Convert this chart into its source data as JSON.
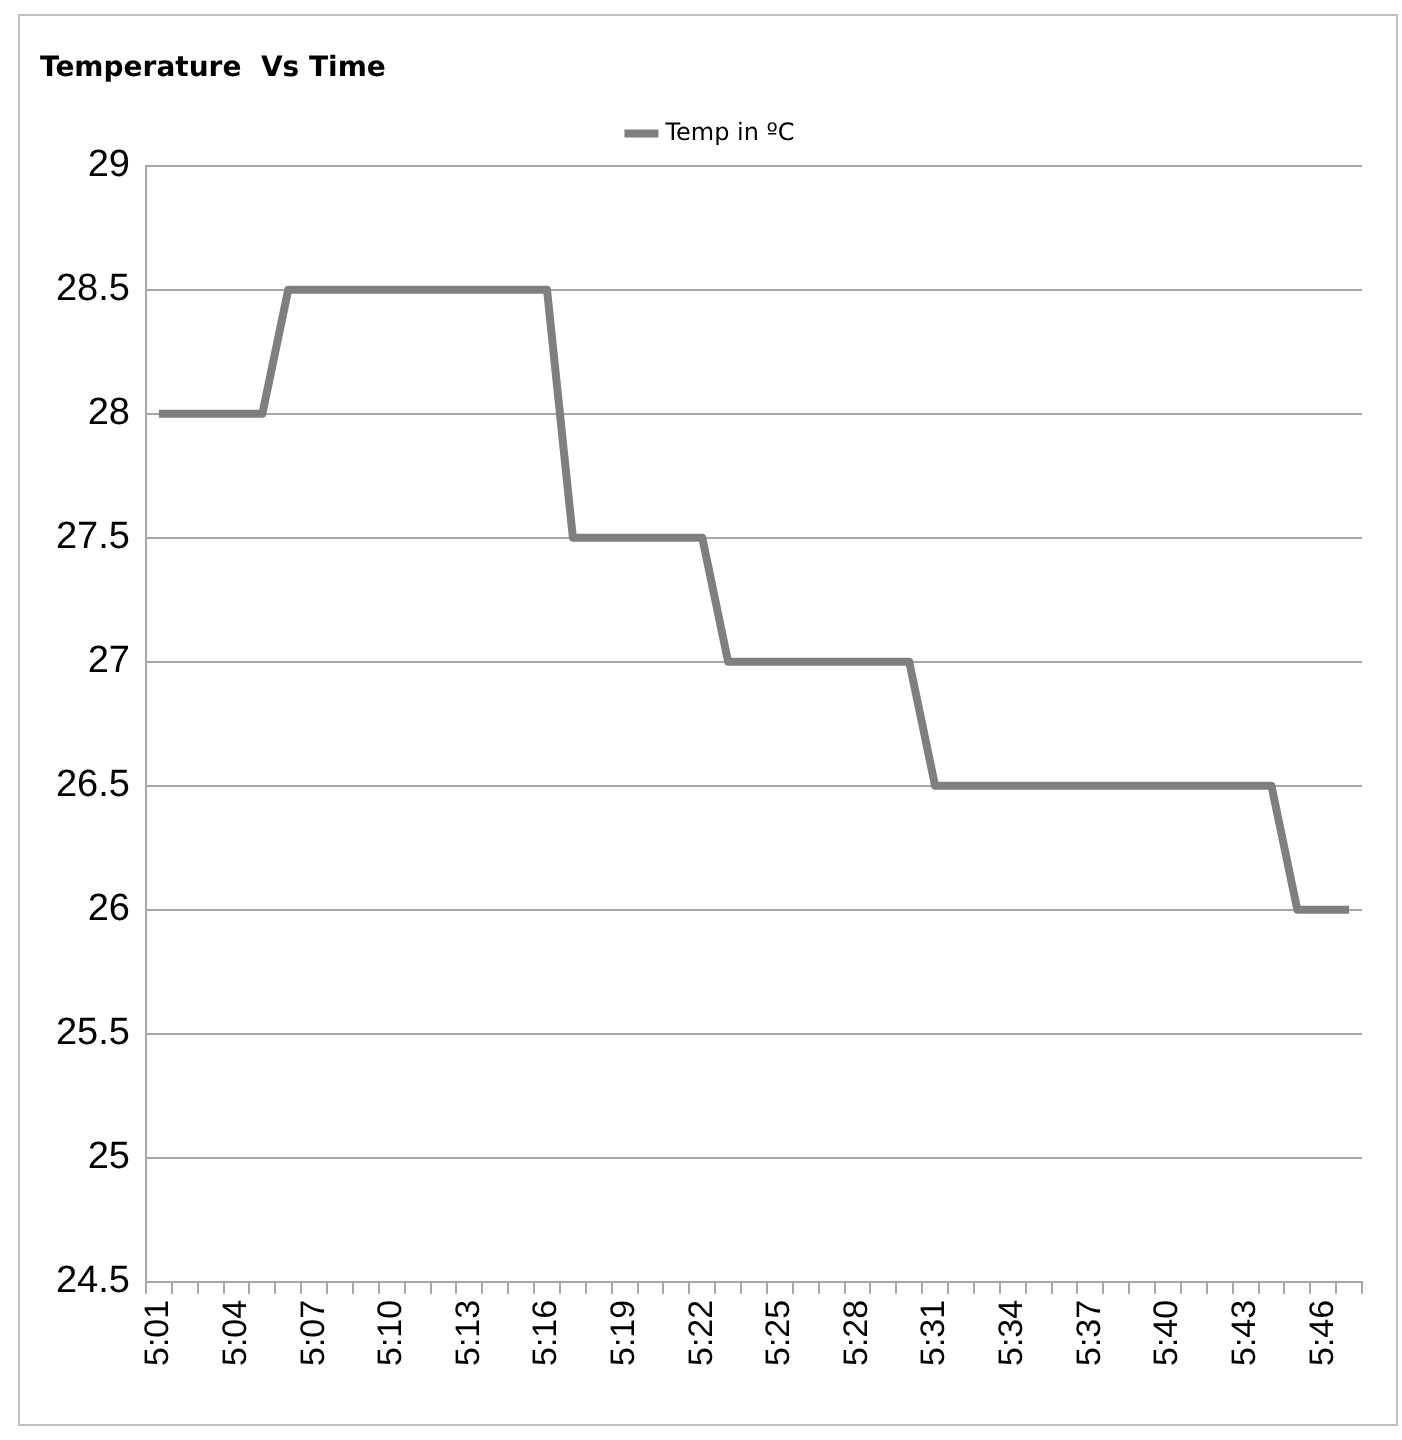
{
  "chart_data": {
    "type": "line",
    "title": "Temperature  Vs Time",
    "categories": [
      "5:01",
      null,
      null,
      "5:04",
      null,
      null,
      "5:07",
      null,
      null,
      "5:10",
      null,
      null,
      "5:13",
      null,
      null,
      "5:16",
      null,
      null,
      "5:19",
      null,
      null,
      "5:22",
      null,
      null,
      "5:25",
      null,
      null,
      "5:28",
      null,
      null,
      "5:31",
      null,
      null,
      "5:34",
      null,
      null,
      "5:37",
      null,
      null,
      "5:40",
      null,
      null,
      "5:43",
      null,
      null,
      "5:46",
      null
    ],
    "series": [
      {
        "name": "Temp in ºC",
        "color": "#7f7f7f",
        "values": [
          28,
          28,
          28,
          28,
          28,
          28.5,
          28.5,
          28.5,
          28.5,
          28.5,
          28.5,
          28.5,
          28.5,
          28.5,
          28.5,
          28.5,
          27.5,
          27.5,
          27.5,
          27.5,
          27.5,
          27.5,
          27,
          27,
          27,
          27,
          27,
          27,
          27,
          27,
          26.5,
          26.5,
          26.5,
          26.5,
          26.5,
          26.5,
          26.5,
          26.5,
          26.5,
          26.5,
          26.5,
          26.5,
          26.5,
          26.5,
          26,
          26,
          26
        ]
      }
    ],
    "ylim": [
      24.5,
      29
    ],
    "yticks": [
      24.5,
      25,
      25.5,
      26,
      26.5,
      27,
      27.5,
      28,
      28.5,
      29
    ],
    "grid": "y",
    "legend": "top",
    "marker": "none",
    "line_style": "solid"
  }
}
